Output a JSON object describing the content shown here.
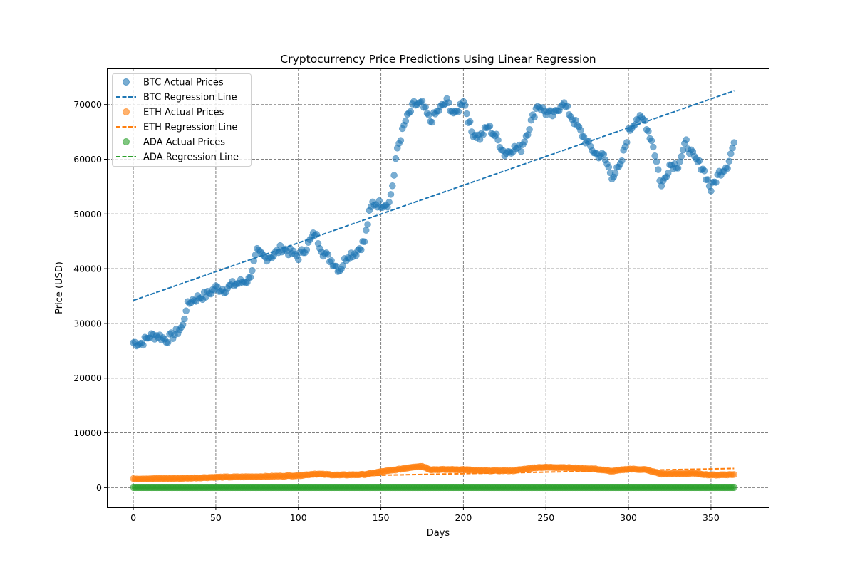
{
  "chart_data": {
    "type": "scatter",
    "title": "Cryptocurrency Price Predictions Using Linear Regression",
    "xlabel": "Days",
    "ylabel": "Price (USD)",
    "xlim": [
      -16,
      385
    ],
    "ylim": [
      -3600,
      76600
    ],
    "xticks": [
      0,
      50,
      100,
      150,
      200,
      250,
      300,
      350
    ],
    "yticks": [
      0,
      10000,
      20000,
      30000,
      40000,
      50000,
      60000,
      70000
    ],
    "grid": true,
    "legend_position": "top-left",
    "series": [
      {
        "name": "BTC Actual Prices",
        "kind": "scatter",
        "color": "#1f77b4",
        "anchors": [
          [
            0,
            26500
          ],
          [
            5,
            26400
          ],
          [
            10,
            27700
          ],
          [
            15,
            27800
          ],
          [
            20,
            27000
          ],
          [
            25,
            28000
          ],
          [
            30,
            29500
          ],
          [
            32,
            32800
          ],
          [
            35,
            34200
          ],
          [
            40,
            34800
          ],
          [
            45,
            35300
          ],
          [
            50,
            36500
          ],
          [
            55,
            36200
          ],
          [
            60,
            37000
          ],
          [
            65,
            37500
          ],
          [
            70,
            38000
          ],
          [
            75,
            43000
          ],
          [
            80,
            42000
          ],
          [
            85,
            42500
          ],
          [
            90,
            43800
          ],
          [
            95,
            43000
          ],
          [
            100,
            42200
          ],
          [
            105,
            44000
          ],
          [
            110,
            46500
          ],
          [
            115,
            43000
          ],
          [
            120,
            41500
          ],
          [
            125,
            39800
          ],
          [
            130,
            42500
          ],
          [
            135,
            43000
          ],
          [
            140,
            45000
          ],
          [
            143,
            50000
          ],
          [
            145,
            52000
          ],
          [
            150,
            51800
          ],
          [
            155,
            52000
          ],
          [
            158,
            57000
          ],
          [
            160,
            62000
          ],
          [
            165,
            67000
          ],
          [
            170,
            70000
          ],
          [
            175,
            70000
          ],
          [
            180,
            67000
          ],
          [
            185,
            69000
          ],
          [
            190,
            70500
          ],
          [
            195,
            68000
          ],
          [
            200,
            71000
          ],
          [
            205,
            65000
          ],
          [
            210,
            64000
          ],
          [
            215,
            66000
          ],
          [
            220,
            64000
          ],
          [
            225,
            61000
          ],
          [
            230,
            62000
          ],
          [
            235,
            62000
          ],
          [
            240,
            66000
          ],
          [
            245,
            70000
          ],
          [
            250,
            68500
          ],
          [
            255,
            68000
          ],
          [
            260,
            70500
          ],
          [
            265,
            68000
          ],
          [
            270,
            65500
          ],
          [
            275,
            63000
          ],
          [
            280,
            61000
          ],
          [
            285,
            60500
          ],
          [
            290,
            57000
          ],
          [
            295,
            58500
          ],
          [
            300,
            65000
          ],
          [
            305,
            67500
          ],
          [
            310,
            67000
          ],
          [
            315,
            62500
          ],
          [
            320,
            55000
          ],
          [
            325,
            59000
          ],
          [
            330,
            59000
          ],
          [
            335,
            63000
          ],
          [
            340,
            60000
          ],
          [
            345,
            58500
          ],
          [
            350,
            54500
          ],
          [
            355,
            57500
          ],
          [
            360,
            59000
          ],
          [
            364,
            63000
          ]
        ]
      },
      {
        "name": "BTC Regression Line",
        "kind": "line",
        "color": "#1f77b4",
        "x": [
          0,
          364
        ],
        "y": [
          34200,
          72500
        ]
      },
      {
        "name": "ETH Actual Prices",
        "kind": "scatter",
        "color": "#ff7f0e",
        "anchors": [
          [
            0,
            1600
          ],
          [
            30,
            1700
          ],
          [
            50,
            1900
          ],
          [
            75,
            2000
          ],
          [
            100,
            2200
          ],
          [
            110,
            2500
          ],
          [
            125,
            2300
          ],
          [
            140,
            2400
          ],
          [
            150,
            2900
          ],
          [
            160,
            3300
          ],
          [
            170,
            3800
          ],
          [
            175,
            3900
          ],
          [
            180,
            3300
          ],
          [
            200,
            3300
          ],
          [
            210,
            3100
          ],
          [
            230,
            3100
          ],
          [
            245,
            3700
          ],
          [
            260,
            3700
          ],
          [
            280,
            3400
          ],
          [
            290,
            3000
          ],
          [
            300,
            3400
          ],
          [
            310,
            3300
          ],
          [
            320,
            2500
          ],
          [
            340,
            2600
          ],
          [
            350,
            2300
          ],
          [
            364,
            2400
          ]
        ]
      },
      {
        "name": "ETH Regression Line",
        "kind": "line",
        "color": "#ff7f0e",
        "x": [
          0,
          364
        ],
        "y": [
          1400,
          3500
        ]
      },
      {
        "name": "ADA Actual Prices",
        "kind": "scatter",
        "color": "#2ca02c",
        "anchors": [
          [
            0,
            0.3
          ],
          [
            182,
            0.4
          ],
          [
            364,
            0.5
          ]
        ]
      },
      {
        "name": "ADA Regression Line",
        "kind": "line",
        "color": "#2ca02c",
        "x": [
          0,
          364
        ],
        "y": [
          0.3,
          0.5
        ]
      }
    ]
  }
}
